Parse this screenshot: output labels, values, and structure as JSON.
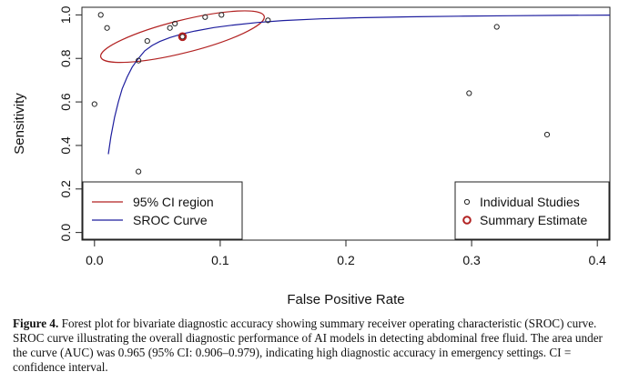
{
  "chart_data": {
    "type": "scatter",
    "title": "",
    "xlabel": "False Positive Rate",
    "ylabel": "Sensitivity",
    "xlim": [
      -0.01,
      0.41
    ],
    "ylim": [
      -0.035,
      1.035
    ],
    "x_ticks": [
      0.0,
      0.1,
      0.2,
      0.3,
      0.4
    ],
    "x_tick_labels": [
      "0.0",
      "0.1",
      "0.2",
      "0.3",
      "0.4"
    ],
    "y_ticks": [
      0.0,
      0.2,
      0.4,
      0.6,
      0.8,
      1.0
    ],
    "y_tick_labels": [
      "0.0",
      "0.2",
      "0.4",
      "0.6",
      "0.8",
      "1.0"
    ],
    "grid": false,
    "studies": {
      "name": "Individual Studies",
      "x": [
        0.0,
        0.005,
        0.01,
        0.035,
        0.035,
        0.042,
        0.06,
        0.064,
        0.07,
        0.088,
        0.101,
        0.138,
        0.298,
        0.32,
        0.36
      ],
      "y": [
        0.59,
        1.0,
        0.94,
        0.28,
        0.79,
        0.88,
        0.94,
        0.96,
        0.9,
        0.99,
        1.0,
        0.975,
        0.64,
        0.945,
        0.45
      ]
    },
    "summary_estimate": {
      "name": "Summary Estimate",
      "x": 0.07,
      "y": 0.9
    },
    "confidence_region": {
      "name": "95% CI region",
      "color": "#b22222",
      "center": [
        0.07,
        0.9
      ],
      "rx": 0.067,
      "ry": 0.075,
      "rotation_deg": -14
    },
    "sroc_curve": {
      "name": "SROC Curve",
      "color": "#1e1e9e",
      "x": [
        0.011,
        0.013,
        0.016,
        0.019,
        0.022,
        0.026,
        0.03,
        0.035,
        0.04,
        0.046,
        0.052,
        0.06,
        0.07,
        0.08,
        0.095,
        0.11,
        0.13,
        0.15,
        0.18,
        0.21,
        0.25,
        0.29,
        0.33,
        0.37,
        0.41
      ],
      "y": [
        0.36,
        0.44,
        0.53,
        0.6,
        0.66,
        0.715,
        0.76,
        0.8,
        0.835,
        0.86,
        0.878,
        0.896,
        0.913,
        0.926,
        0.942,
        0.953,
        0.965,
        0.974,
        0.982,
        0.987,
        0.991,
        0.994,
        0.996,
        0.998,
        0.999
      ]
    },
    "legends": {
      "left": {
        "position": "bottom-left",
        "items": [
          "95% CI region",
          "SROC Curve"
        ]
      },
      "right": {
        "position": "bottom-right",
        "items": [
          "Individual Studies",
          "Summary Estimate"
        ]
      }
    }
  },
  "caption": {
    "label": "Figure 4.",
    "text": "Forest plot for bivariate diagnostic accuracy showing summary receiver operating characteristic (SROC) curve. SROC curve illustrating the overall diagnostic performance of AI models in detecting abdominal free fluid. The area under the curve (AUC) was 0.965 (95% CI: 0.906–0.979), indicating high diagnostic accuracy in emergency settings. CI = confidence interval."
  },
  "colors": {
    "axis": "#222222",
    "study_point": "#222222",
    "summary_point": "#b22222"
  }
}
